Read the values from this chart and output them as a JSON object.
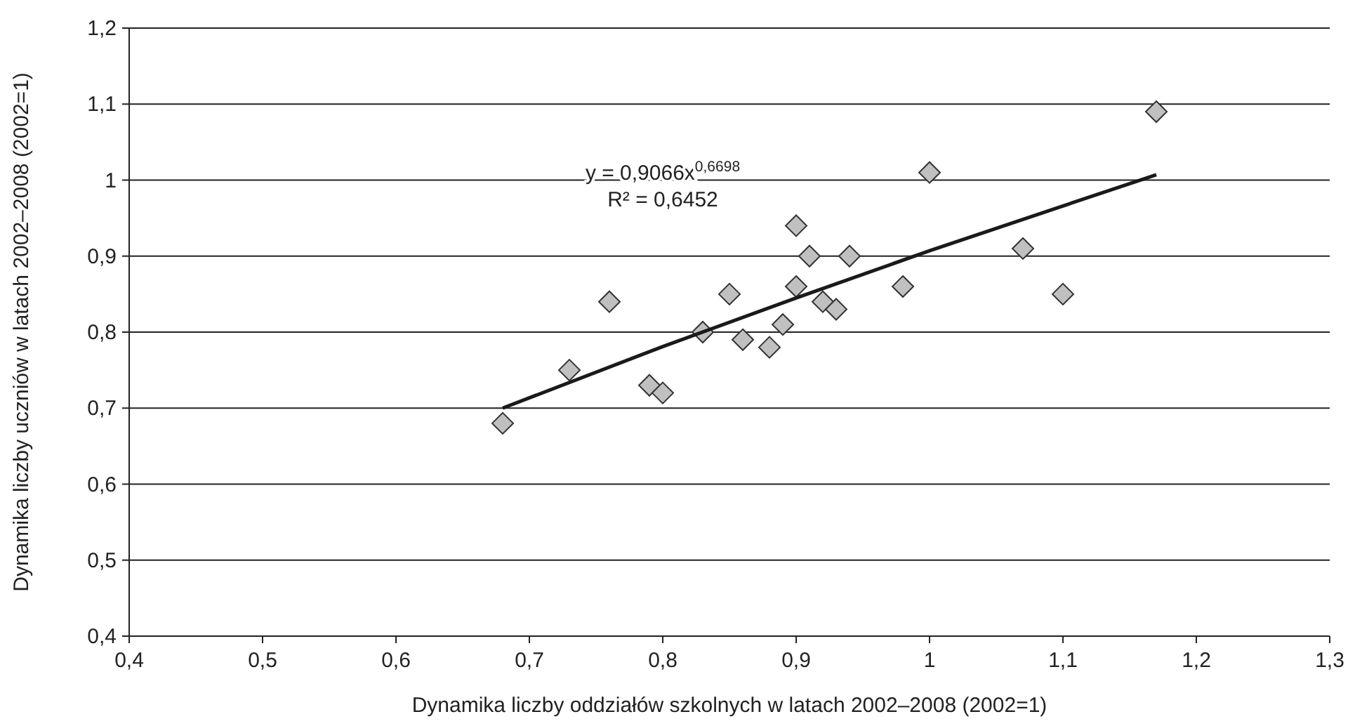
{
  "chart_data": {
    "type": "scatter",
    "xlabel": "Dynamika liczby oddziałów szkolnych w latach 2002–2008 (2002=1)",
    "ylabel": "Dynamika liczby uczniów w latach 2002–2008 (2002=1)",
    "series": [
      {
        "color": "#c0c0c0",
        "marker": "diamond",
        "x": [
          0.68,
          0.73,
          0.76,
          0.79,
          0.8,
          0.83,
          0.85,
          0.86,
          0.88,
          0.89,
          0.9,
          0.91,
          0.9,
          0.92,
          0.93,
          0.94,
          0.98,
          1.0,
          1.07,
          1.1,
          1.17
        ],
        "values": [
          0.68,
          0.75,
          0.84,
          0.73,
          0.72,
          0.8,
          0.85,
          0.79,
          0.78,
          0.81,
          0.94,
          0.9,
          0.86,
          0.84,
          0.83,
          0.9,
          0.86,
          1.01,
          0.91,
          0.85,
          1.09
        ]
      },
      {
        "type": "line",
        "color": "#1a1a1a",
        "marker": "none",
        "line_style": "solid",
        "x": [
          0.68,
          0.8,
          0.9,
          1.0,
          1.1,
          1.17
        ],
        "values": [
          0.7,
          0.781,
          0.845,
          0.907,
          0.966,
          1.007
        ]
      }
    ],
    "annotations": [
      "y = 0,9066x$^{0,6698}$",
      "R² = 0,6452"
    ],
    "xlim": [
      0.4,
      1.3
    ],
    "xticks": [
      {
        "value": 0.4,
        "label": "0,4"
      },
      {
        "value": 0.5,
        "label": "0,5"
      },
      {
        "value": 0.6,
        "label": "0,6"
      },
      {
        "value": 0.7,
        "label": "0,7"
      },
      {
        "value": 0.8,
        "label": "0,8"
      },
      {
        "value": 0.9,
        "label": "0,9"
      },
      1,
      {
        "value": 1.1,
        "label": "1,1"
      },
      {
        "value": 1.2,
        "label": "1,2"
      },
      {
        "value": 1.3,
        "label": "1,3"
      }
    ],
    "ylim": [
      0.4,
      1.2
    ],
    "yticks": [
      {
        "value": 0.4,
        "label": "0,4"
      },
      {
        "value": 0.5,
        "label": "0,5"
      },
      {
        "value": 0.6,
        "label": "0,6"
      },
      {
        "value": 0.7,
        "label": "0,7"
      },
      {
        "value": 0.8,
        "label": "0,8"
      },
      {
        "value": 0.9,
        "label": "0,9"
      },
      1,
      {
        "value": 1.1,
        "label": "1,1"
      },
      {
        "value": 1.2,
        "label": "1,2"
      }
    ],
    "grid": "y"
  }
}
